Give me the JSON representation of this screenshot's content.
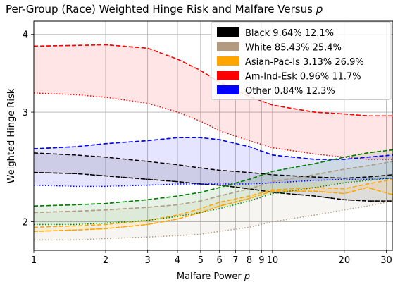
{
  "chart_data": {
    "type": "line",
    "title": "Per-Group (Race) Weighted Hinge Risk and Malfare Versus ",
    "title_var": "p",
    "xlabel": "Malfare Power ",
    "xlabel_var": "p",
    "ylabel": "Weighted Hinge Risk",
    "xscale": "log",
    "yscale": "log",
    "xlim": [
      1,
      32
    ],
    "ylim": [
      1.8,
      4.2
    ],
    "xticks": [
      {
        "value": 1,
        "label": "1"
      },
      {
        "value": 2,
        "label": "2"
      },
      {
        "value": 3,
        "label": "3"
      },
      {
        "value": 4,
        "label": "4"
      },
      {
        "value": 5,
        "label": "5"
      },
      {
        "value": 6,
        "label": "6"
      },
      {
        "value": 7,
        "label": "7"
      },
      {
        "value": 8,
        "label": "8"
      },
      {
        "value": 9,
        "label": "9"
      },
      {
        "value": 10,
        "label": "10"
      },
      {
        "value": 20,
        "label": "20"
      },
      {
        "value": 30,
        "label": "30"
      }
    ],
    "yticks": [
      {
        "value": 2,
        "label": "2"
      },
      {
        "value": 3,
        "label": "3"
      },
      {
        "value": 4,
        "label": "4"
      }
    ],
    "grid": true,
    "legend_position": "top-right",
    "x": [
      1,
      1.5,
      2,
      3,
      4,
      5,
      6,
      8,
      10,
      15,
      20,
      25,
      32
    ],
    "series": [
      {
        "name": "Black 9.64% 12.1%",
        "color": "#000000",
        "upper": [
          2.58,
          2.56,
          2.54,
          2.5,
          2.47,
          2.44,
          2.42,
          2.4,
          2.38,
          2.36,
          2.35,
          2.36,
          2.38
        ],
        "mid": [
          2.4,
          2.39,
          2.37,
          2.34,
          2.32,
          2.3,
          2.29,
          2.26,
          2.23,
          2.2,
          2.17,
          2.16,
          2.16
        ],
        "lower": [
          2.4,
          2.39,
          2.37,
          2.34,
          2.32,
          2.3,
          2.29,
          2.26,
          2.23,
          2.2,
          2.17,
          2.16,
          2.16
        ]
      },
      {
        "name": "White 85.43% 25.4%",
        "color": "#b39b82",
        "upper": [
          2.07,
          2.08,
          2.09,
          2.11,
          2.13,
          2.16,
          2.2,
          2.26,
          2.32,
          2.38,
          2.43,
          2.46,
          2.5
        ],
        "mid": [
          2.07,
          2.08,
          2.09,
          2.11,
          2.13,
          2.16,
          2.2,
          2.26,
          2.32,
          2.38,
          2.43,
          2.46,
          2.5
        ],
        "lower": [
          1.87,
          1.87,
          1.88,
          1.89,
          1.9,
          1.91,
          1.93,
          1.96,
          2.0,
          2.05,
          2.09,
          2.12,
          2.16
        ]
      },
      {
        "name": "Asian-Pac-Is 3.13% 26.9%",
        "color": "#ffa500",
        "upper": [
          1.96,
          1.97,
          1.98,
          2.01,
          2.05,
          2.1,
          2.15,
          2.2,
          2.25,
          2.27,
          2.26,
          2.3,
          2.34
        ],
        "mid": [
          1.93,
          1.94,
          1.95,
          1.98,
          2.02,
          2.07,
          2.12,
          2.18,
          2.24,
          2.24,
          2.22,
          2.27,
          2.21
        ],
        "lower": [
          1.93,
          1.94,
          1.95,
          1.98,
          2.02,
          2.07,
          2.12,
          2.18,
          2.24,
          2.24,
          2.22,
          2.27,
          2.21
        ]
      },
      {
        "name": "Am-Ind-Esk 0.96% 11.7%",
        "color": "#ff0000",
        "upper": [
          3.83,
          3.84,
          3.85,
          3.8,
          3.65,
          3.5,
          3.35,
          3.18,
          3.08,
          3.0,
          2.98,
          2.96,
          2.96
        ],
        "mid": [
          3.83,
          3.84,
          3.85,
          3.8,
          3.65,
          3.5,
          3.35,
          3.18,
          3.08,
          3.0,
          2.98,
          2.96,
          2.96
        ],
        "lower": [
          3.22,
          3.2,
          3.17,
          3.1,
          3.0,
          2.9,
          2.8,
          2.7,
          2.63,
          2.57,
          2.54,
          2.52,
          2.52
        ]
      },
      {
        "name": "Other 0.84% 12.3%",
        "color": "#0000ff",
        "upper": [
          2.62,
          2.64,
          2.67,
          2.7,
          2.73,
          2.73,
          2.71,
          2.64,
          2.56,
          2.52,
          2.52,
          2.54,
          2.56
        ],
        "mid": [
          2.62,
          2.64,
          2.67,
          2.7,
          2.73,
          2.73,
          2.71,
          2.64,
          2.56,
          2.52,
          2.52,
          2.54,
          2.56
        ],
        "lower": [
          2.29,
          2.28,
          2.28,
          2.29,
          2.3,
          2.3,
          2.3,
          2.3,
          2.31,
          2.33,
          2.34,
          2.34,
          2.35
        ]
      },
      {
        "name": "",
        "color": "#008000",
        "upper": [
          2.12,
          2.13,
          2.14,
          2.17,
          2.2,
          2.23,
          2.27,
          2.34,
          2.41,
          2.48,
          2.54,
          2.58,
          2.61
        ],
        "mid": [
          2.12,
          2.13,
          2.14,
          2.17,
          2.2,
          2.23,
          2.27,
          2.34,
          2.41,
          2.48,
          2.54,
          2.58,
          2.61
        ],
        "lower": [
          1.98,
          1.98,
          1.99,
          2.01,
          2.04,
          2.07,
          2.1,
          2.16,
          2.22,
          2.27,
          2.31,
          2.33,
          2.35
        ]
      }
    ]
  }
}
